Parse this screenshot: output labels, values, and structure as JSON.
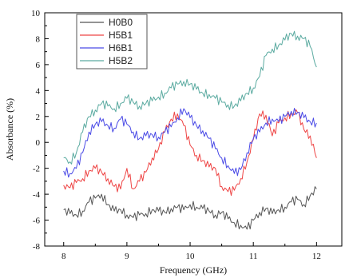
{
  "chart_data": {
    "type": "line",
    "xlabel": "Frequency (GHz)",
    "ylabel": "Absorbance (%)",
    "xlim": [
      7.7,
      12.4
    ],
    "ylim": [
      -8,
      10
    ],
    "x_ticks": [
      8,
      9,
      10,
      11,
      12
    ],
    "x_tick_labels": [
      "8",
      "9",
      "10",
      "11",
      "12"
    ],
    "y_ticks": [
      -8,
      -6,
      -4,
      -2,
      0,
      2,
      4,
      6,
      8,
      10
    ],
    "y_tick_labels": [
      "-8",
      "-6",
      "-4",
      "-2",
      "0",
      "2",
      "4",
      "6",
      "8",
      "10"
    ],
    "grid": false,
    "legend_position": "top-left",
    "x": [
      8.0,
      8.1,
      8.2,
      8.3,
      8.4,
      8.5,
      8.6,
      8.7,
      8.8,
      8.9,
      9.0,
      9.1,
      9.2,
      9.3,
      9.4,
      9.5,
      9.6,
      9.7,
      9.8,
      9.9,
      10.0,
      10.1,
      10.2,
      10.3,
      10.4,
      10.5,
      10.6,
      10.7,
      10.8,
      10.9,
      11.0,
      11.1,
      11.2,
      11.3,
      11.4,
      11.5,
      11.6,
      11.7,
      11.8,
      11.9,
      12.0
    ],
    "series": [
      {
        "name": "H0B0",
        "color": "#555555",
        "values": [
          -5.2,
          -5.5,
          -5.6,
          -5.3,
          -4.6,
          -4.3,
          -4.0,
          -4.8,
          -5.3,
          -5.2,
          -5.6,
          -5.8,
          -5.6,
          -5.5,
          -5.2,
          -5.3,
          -5.4,
          -5.1,
          -5.0,
          -5.2,
          -4.8,
          -5.0,
          -5.1,
          -5.3,
          -5.6,
          -5.4,
          -5.9,
          -6.2,
          -6.4,
          -6.7,
          -6.0,
          -5.4,
          -5.1,
          -5.5,
          -5.2,
          -5.0,
          -4.6,
          -4.4,
          -4.8,
          -4.1,
          -3.6
        ]
      },
      {
        "name": "H5B1",
        "color": "#ee4444",
        "values": [
          -3.3,
          -3.5,
          -3.1,
          -2.8,
          -2.2,
          -2.0,
          -2.3,
          -2.8,
          -3.4,
          -3.6,
          -2.0,
          -3.6,
          -3.0,
          -2.3,
          -1.2,
          -0.5,
          0.8,
          1.8,
          2.2,
          1.3,
          -0.2,
          -1.0,
          -1.4,
          -1.9,
          -2.0,
          -3.4,
          -3.8,
          -3.7,
          -2.8,
          -1.5,
          0.2,
          2.2,
          2.1,
          0.5,
          1.5,
          1.9,
          2.2,
          2.3,
          1.0,
          0.5,
          -1.2
        ]
      },
      {
        "name": "H6B1",
        "color": "#4a4ae6",
        "values": [
          -2.2,
          -2.4,
          -2.0,
          -0.8,
          0.8,
          1.4,
          1.6,
          1.3,
          1.1,
          1.8,
          1.4,
          0.8,
          0.3,
          0.5,
          0.6,
          0.4,
          0.8,
          1.2,
          1.9,
          2.6,
          1.9,
          1.3,
          0.9,
          0.3,
          -0.5,
          -1.2,
          -1.8,
          -2.4,
          -2.1,
          -0.8,
          0.3,
          0.8,
          1.5,
          1.8,
          1.6,
          2.0,
          2.4,
          2.3,
          1.9,
          1.6,
          1.5
        ]
      },
      {
        "name": "H5B2",
        "color": "#5aaaa0",
        "values": [
          -1.2,
          -1.5,
          -0.8,
          0.8,
          2.0,
          2.5,
          3.0,
          2.8,
          2.6,
          3.0,
          3.4,
          3.1,
          2.8,
          3.0,
          3.2,
          3.5,
          3.8,
          4.2,
          4.5,
          4.7,
          4.5,
          4.1,
          3.8,
          3.7,
          3.4,
          3.1,
          2.9,
          2.8,
          3.2,
          3.8,
          4.2,
          5.1,
          6.7,
          7.2,
          7.5,
          7.9,
          8.4,
          8.2,
          8.0,
          7.4,
          5.8
        ]
      }
    ]
  }
}
